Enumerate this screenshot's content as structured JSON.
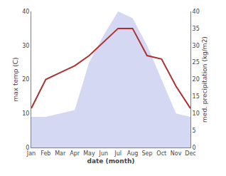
{
  "chart_data": {
    "type": "line",
    "categories": [
      "Jan",
      "Feb",
      "Mar",
      "Apr",
      "May",
      "Jun",
      "Jul",
      "Aug",
      "Sep",
      "Oct",
      "Nov",
      "Dec"
    ],
    "series": [
      {
        "type": "area",
        "color": "#b0b8e8",
        "axis": "y2",
        "values": [
          9,
          9,
          10,
          11,
          25,
          33,
          40,
          38,
          30,
          20,
          10,
          9
        ]
      },
      {
        "type": "line",
        "color": "#b03030",
        "axis": "y",
        "values": [
          11.5,
          20,
          22,
          24,
          27,
          31,
          35,
          35,
          27,
          26,
          18,
          11.5
        ]
      }
    ],
    "xlabel": "date (month)",
    "ylabel": "max temp (C)",
    "y2label": "med. precipitation (kg/m2)",
    "ylim": [
      0,
      40
    ],
    "yticks": [
      0,
      10,
      20,
      30,
      40
    ],
    "y2lim": [
      0,
      40
    ],
    "y2ticks": [
      0,
      5,
      10,
      15,
      20,
      25,
      30,
      35,
      40
    ],
    "grid": false
  }
}
